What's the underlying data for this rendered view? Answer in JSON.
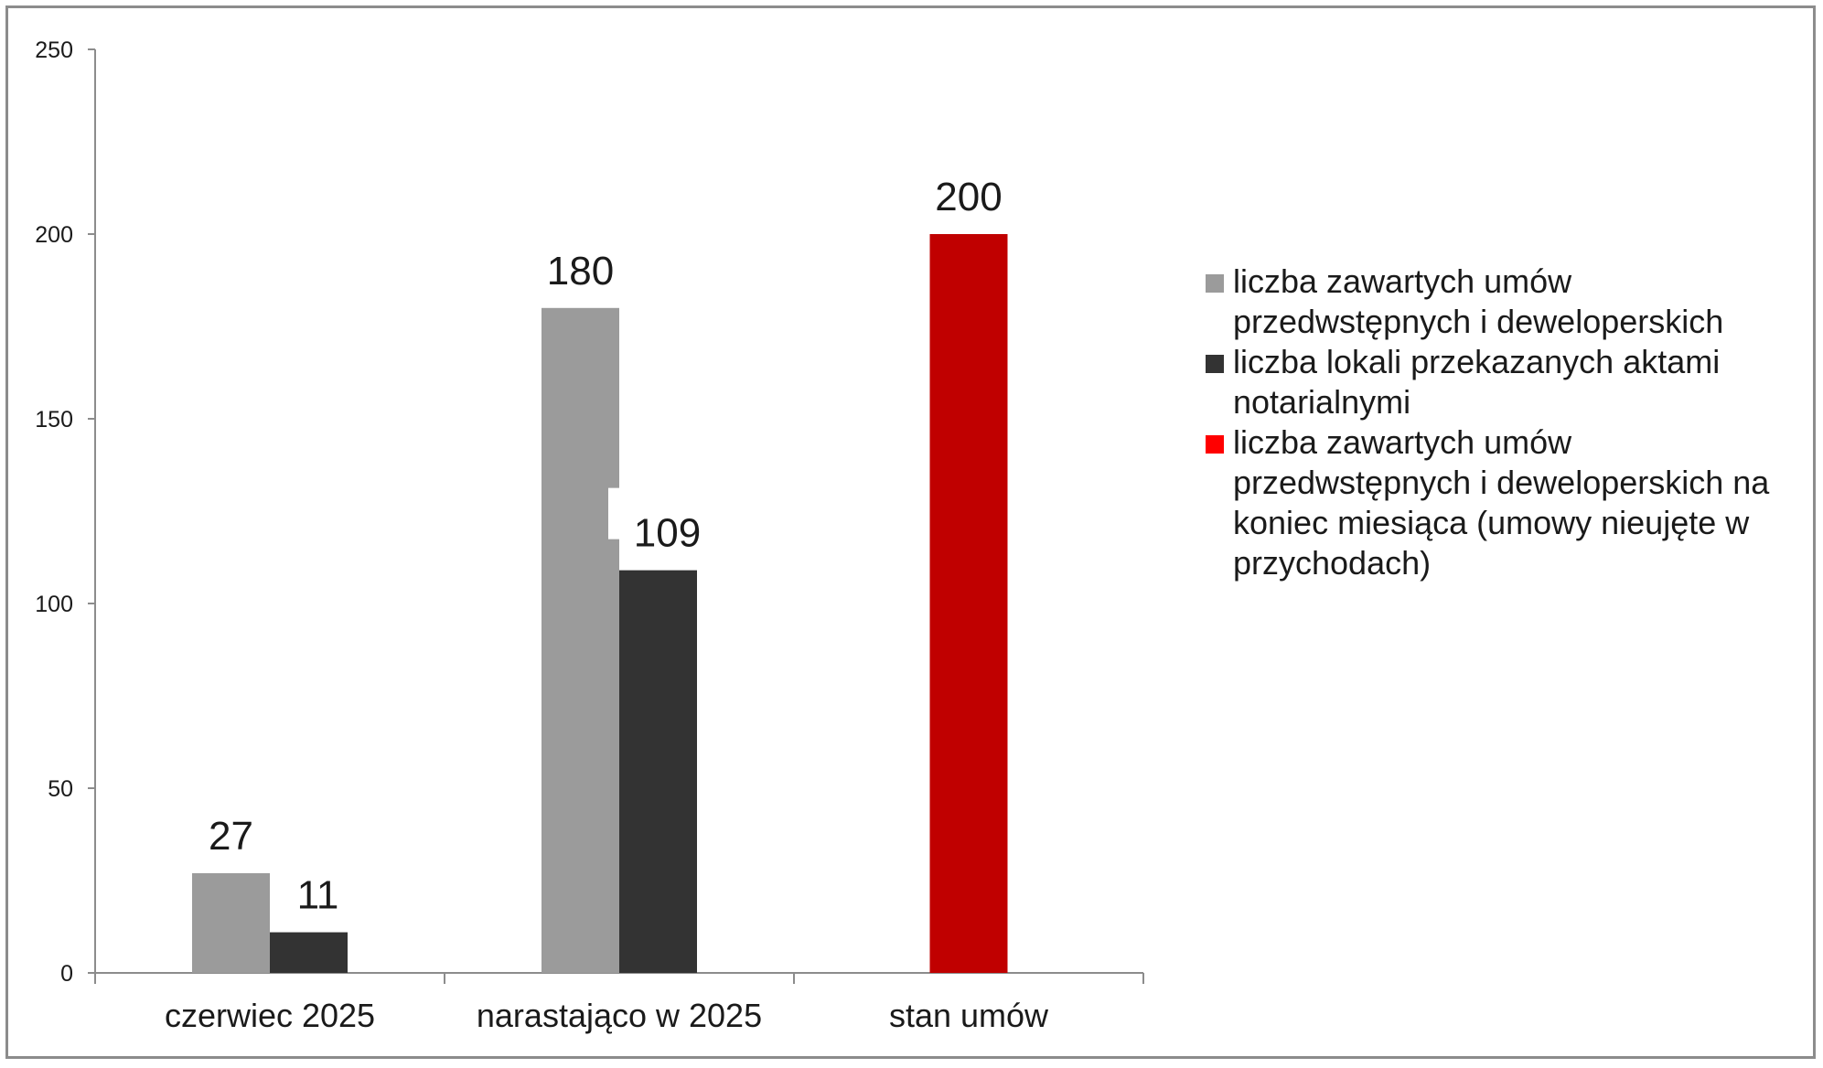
{
  "chart_data": {
    "type": "bar",
    "categories": [
      "czerwiec 2025",
      "narastająco w 2025",
      "stan umów"
    ],
    "ylim": [
      0,
      250
    ],
    "yticks": [
      0,
      50,
      100,
      150,
      200,
      250
    ],
    "grid": false,
    "legend_position": "right",
    "series": [
      {
        "name": "liczba zawartych umów przedwstępnych i deweloperskich",
        "color": "#9b9b9b",
        "legend_color": "#9b9b9b",
        "values": [
          27,
          180,
          null
        ]
      },
      {
        "name": "liczba lokali przekazanych aktami notarialnymi",
        "color": "#333333",
        "legend_color": "#333333",
        "values": [
          11,
          109,
          null
        ]
      },
      {
        "name": "liczba zawartych umów przedwstępnych i deweloperskich na koniec miesiąca (umowy nieujęte w przychodach)",
        "color": "#c00000",
        "legend_color": "#ff0000",
        "values": [
          null,
          null,
          200
        ]
      }
    ]
  }
}
